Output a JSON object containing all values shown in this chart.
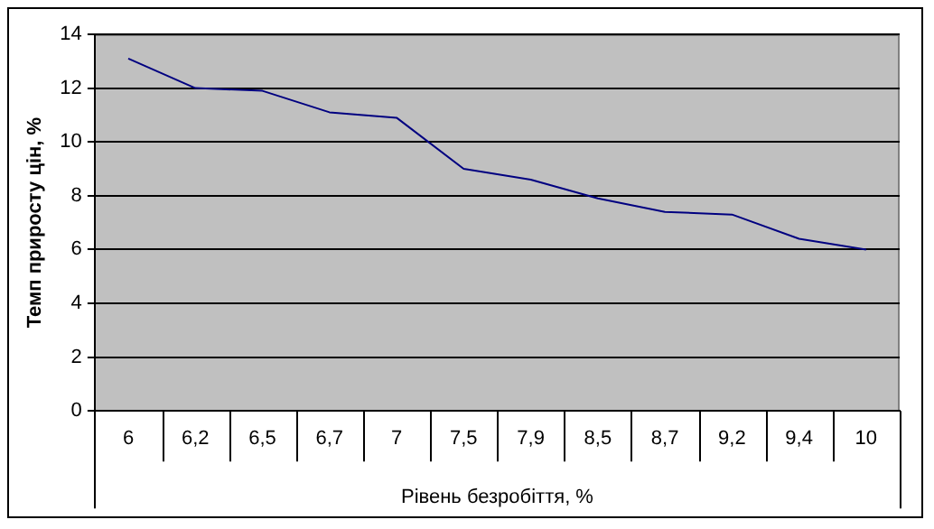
{
  "chart_data": {
    "type": "line",
    "xlabel": "Рівень безробіття, %",
    "ylabel": "Темп приросту цін, %",
    "categories": [
      "6",
      "6,2",
      "6,5",
      "6,7",
      "7",
      "7,5",
      "7,9",
      "8,5",
      "8,7",
      "9,2",
      "9,4",
      "10"
    ],
    "series": [
      {
        "color": "#000080",
        "values": [
          13.1,
          12.0,
          11.9,
          11.1,
          10.9,
          9.0,
          8.6,
          7.9,
          7.4,
          7.3,
          6.4,
          6.0
        ]
      }
    ],
    "ylim": [
      0,
      14
    ],
    "yticks": [
      0,
      2,
      4,
      6,
      8,
      10,
      12,
      14
    ],
    "grid": "y",
    "legend": false,
    "marker": "none",
    "line_style": "solid"
  }
}
